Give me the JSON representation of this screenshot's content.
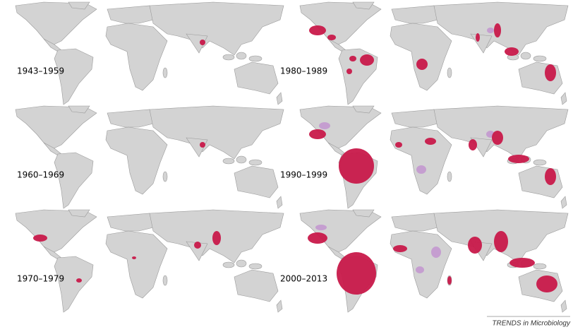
{
  "panels": [
    {
      "label": "1943–1959"
    },
    {
      "label": "1960–1969"
    },
    {
      "label": "1970–1979"
    },
    {
      "label": "1980–1989"
    },
    {
      "label": "1990–1999"
    },
    {
      "label": "2000–2013"
    }
  ],
  "footer": "TRENDS in Microbiology"
}
